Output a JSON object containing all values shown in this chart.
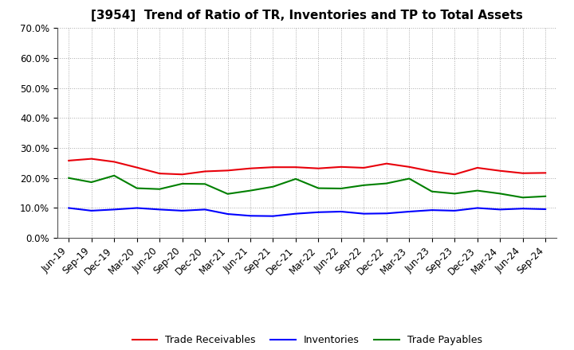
{
  "title": "[3954]  Trend of Ratio of TR, Inventories and TP to Total Assets",
  "x_labels": [
    "Jun-19",
    "Sep-19",
    "Dec-19",
    "Mar-20",
    "Jun-20",
    "Sep-20",
    "Dec-20",
    "Mar-21",
    "Jun-21",
    "Sep-21",
    "Dec-21",
    "Mar-22",
    "Jun-22",
    "Sep-22",
    "Dec-22",
    "Mar-23",
    "Jun-23",
    "Sep-23",
    "Dec-23",
    "Mar-24",
    "Jun-24",
    "Sep-24"
  ],
  "trade_receivables": [
    0.258,
    0.264,
    0.254,
    0.235,
    0.215,
    0.212,
    0.222,
    0.225,
    0.232,
    0.236,
    0.236,
    0.232,
    0.237,
    0.234,
    0.248,
    0.237,
    0.222,
    0.212,
    0.234,
    0.224,
    0.216,
    0.217
  ],
  "inventories": [
    0.1,
    0.091,
    0.095,
    0.1,
    0.095,
    0.091,
    0.095,
    0.08,
    0.074,
    0.073,
    0.081,
    0.086,
    0.088,
    0.081,
    0.082,
    0.088,
    0.093,
    0.091,
    0.1,
    0.095,
    0.098,
    0.096
  ],
  "trade_payables": [
    0.2,
    0.186,
    0.208,
    0.166,
    0.163,
    0.181,
    0.18,
    0.147,
    0.158,
    0.171,
    0.197,
    0.166,
    0.165,
    0.176,
    0.182,
    0.198,
    0.155,
    0.148,
    0.158,
    0.148,
    0.135,
    0.139
  ],
  "tr_color": "#e8000a",
  "inv_color": "#0000ff",
  "tp_color": "#008000",
  "ylim": [
    0.0,
    0.7
  ],
  "yticks": [
    0.0,
    0.1,
    0.2,
    0.3,
    0.4,
    0.5,
    0.6,
    0.7
  ],
  "legend_labels": [
    "Trade Receivables",
    "Inventories",
    "Trade Payables"
  ],
  "bg_color": "#ffffff",
  "plot_bg_color": "#ffffff",
  "grid_color": "#aaaaaa",
  "title_fontsize": 11,
  "tick_fontsize": 8.5,
  "legend_fontsize": 9
}
